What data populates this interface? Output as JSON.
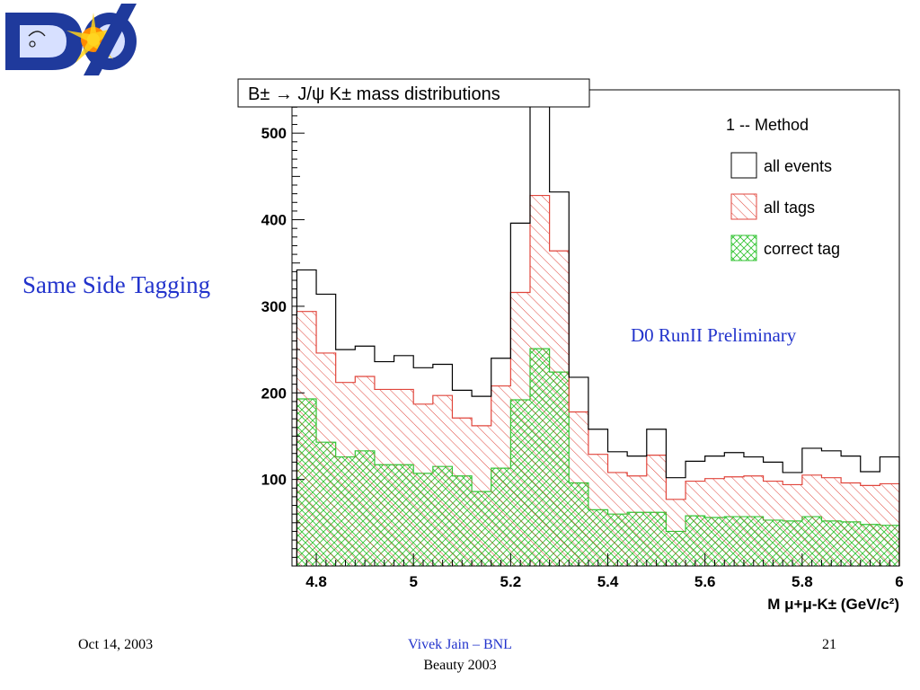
{
  "logo": {
    "text": "DØ"
  },
  "slide": {
    "side_title": "Same Side Tagging"
  },
  "footer": {
    "date": "Oct 14, 2003",
    "author": "Vivek Jain – BNL",
    "conference": "Beauty 2003",
    "page": "21"
  },
  "colors": {
    "accent": "#2233cc",
    "all_tags": "#e0463c",
    "correct_tag": "#34c434",
    "all_events": "#000000"
  },
  "chart_data": {
    "type": "bar",
    "title": "B± → J/ψ K± mass distributions",
    "annotation": "D0 RunII Preliminary",
    "xlabel": "M μ+μ-K± (GeV/c²)",
    "ylabel": "",
    "xlim": [
      4.75,
      6.0
    ],
    "ylim": [
      0,
      550
    ],
    "x_ticks": [
      4.8,
      5,
      5.2,
      5.4,
      5.6,
      5.8,
      6
    ],
    "y_ticks": [
      100,
      200,
      300,
      400,
      500
    ],
    "x_tick_labels": [
      "4.8",
      "5",
      "5.2",
      "5.4",
      "5.6",
      "5.8",
      "6"
    ],
    "y_tick_labels": [
      "100",
      "200",
      "300",
      "400",
      "500"
    ],
    "bin_width": 0.04,
    "bin_low_edges": [
      4.76,
      4.8,
      4.84,
      4.88,
      4.92,
      4.96,
      5.0,
      5.04,
      5.08,
      5.12,
      5.16,
      5.2,
      5.24,
      5.28,
      5.32,
      5.36,
      5.4,
      5.44,
      5.48,
      5.52,
      5.56,
      5.6,
      5.64,
      5.68,
      5.72,
      5.76,
      5.8,
      5.84,
      5.88,
      5.92,
      5.96
    ],
    "legend": {
      "header": "1 -- Method",
      "position": "top-right"
    },
    "series": [
      {
        "name": "all events",
        "style": "outline",
        "values": [
          342,
          314,
          250,
          254,
          236,
          243,
          229,
          233,
          203,
          196,
          240,
          396,
          545,
          432,
          218,
          158,
          132,
          127,
          158,
          102,
          121,
          127,
          131,
          126,
          120,
          108,
          136,
          133,
          127,
          109,
          126
        ]
      },
      {
        "name": "all tags",
        "style": "hatch-red",
        "values": [
          294,
          246,
          212,
          219,
          204,
          204,
          187,
          197,
          171,
          162,
          208,
          316,
          428,
          364,
          178,
          129,
          108,
          104,
          128,
          77,
          98,
          101,
          103,
          104,
          98,
          94,
          105,
          102,
          96,
          93,
          95
        ]
      },
      {
        "name": "correct tag",
        "style": "crosshatch-green",
        "values": [
          193,
          143,
          126,
          133,
          117,
          117,
          107,
          115,
          104,
          86,
          113,
          192,
          251,
          224,
          96,
          65,
          60,
          62,
          62,
          40,
          58,
          56,
          57,
          57,
          53,
          52,
          57,
          52,
          51,
          48,
          47
        ]
      }
    ]
  }
}
